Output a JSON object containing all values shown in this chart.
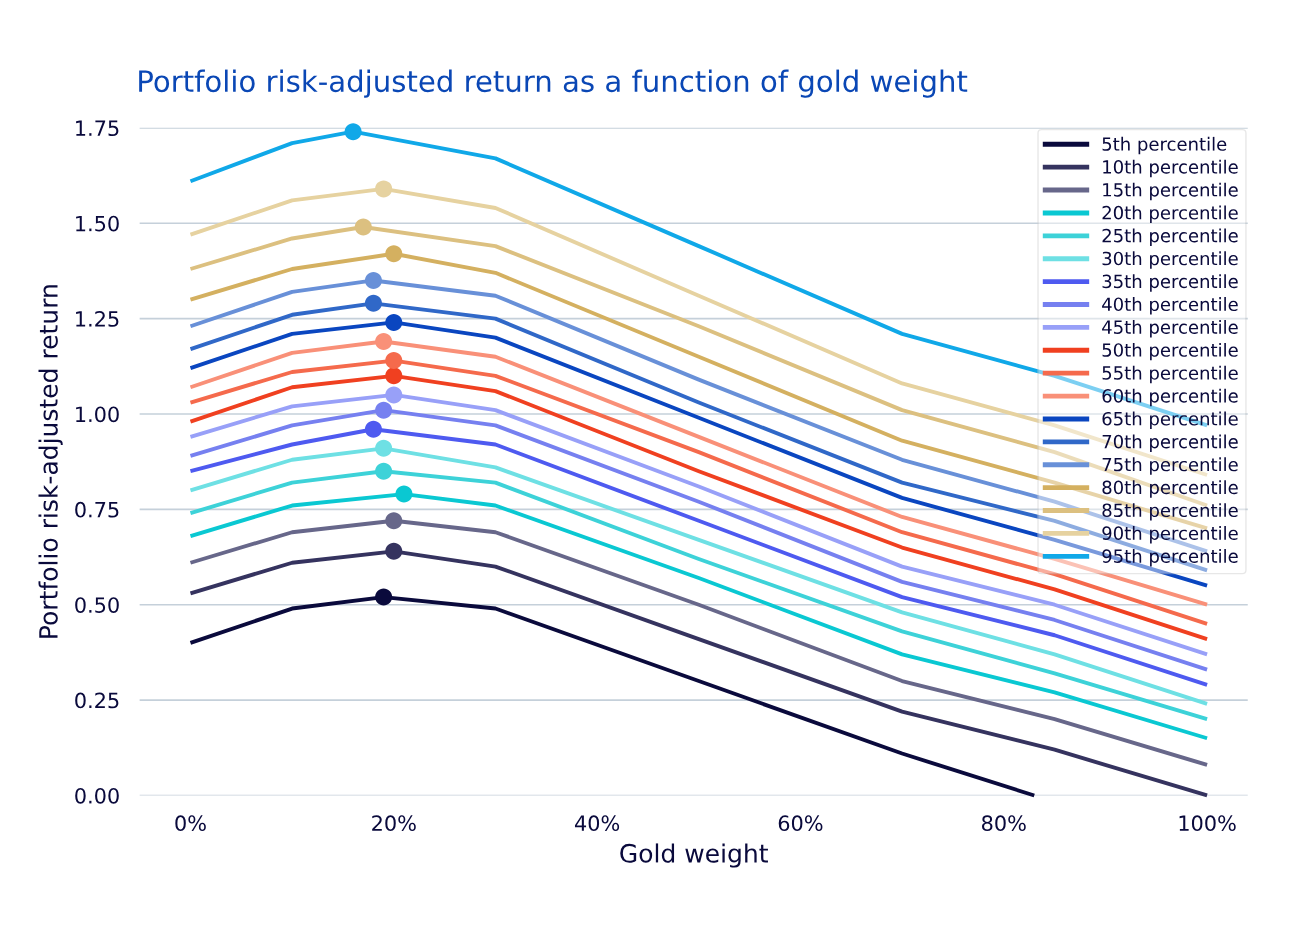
{
  "chart_data": {
    "type": "line",
    "title": "Portfolio risk-adjusted return as a function of gold weight",
    "xlabel": "Gold weight",
    "ylabel": "Portfolio risk-adjusted return",
    "xlim": [
      -5,
      104
    ],
    "xticks": [
      {
        "value": 0,
        "label": "0%"
      },
      {
        "value": 20,
        "label": "20%"
      },
      {
        "value": 40,
        "label": "40%"
      },
      {
        "value": 60,
        "label": "60%"
      },
      {
        "value": 80,
        "label": "80%"
      },
      {
        "value": 100,
        "label": "100%"
      }
    ],
    "ylim": [
      0,
      1.75
    ],
    "yticks": [
      {
        "value": 0,
        "label": "0.00"
      },
      {
        "value": 0.25,
        "label": "0.25"
      },
      {
        "value": 0.5,
        "label": "0.50"
      },
      {
        "value": 0.75,
        "label": "0.75"
      },
      {
        "value": 1.0,
        "label": "1.00"
      },
      {
        "value": 1.25,
        "label": "1.25"
      },
      {
        "value": 1.5,
        "label": "1.50"
      },
      {
        "value": 1.75,
        "label": "1.75"
      }
    ],
    "grid": "y",
    "legend": "top right",
    "marker": "none",
    "line_style": "solid",
    "series": [
      {
        "name": "5th percentile",
        "color": "#0a0a3c",
        "x": [
          0,
          10,
          19,
          30,
          50,
          70,
          83
        ],
        "values": [
          0.4,
          0.49,
          0.52,
          0.49,
          0.3,
          0.11,
          0.0
        ]
      },
      {
        "name": "10th percentile",
        "color": "#35335f",
        "x": [
          0,
          10,
          20,
          30,
          50,
          70,
          85,
          100
        ],
        "values": [
          0.53,
          0.61,
          0.64,
          0.6,
          0.41,
          0.22,
          0.12,
          0.0
        ]
      },
      {
        "name": "15th percentile",
        "color": "#67678a",
        "x": [
          0,
          10,
          20,
          30,
          50,
          70,
          85,
          100
        ],
        "values": [
          0.61,
          0.69,
          0.72,
          0.69,
          0.5,
          0.3,
          0.2,
          0.08
        ]
      },
      {
        "name": "20th percentile",
        "color": "#0ac8d2",
        "x": [
          0,
          10,
          21,
          30,
          50,
          70,
          85,
          100
        ],
        "values": [
          0.68,
          0.76,
          0.79,
          0.76,
          0.57,
          0.37,
          0.27,
          0.15
        ]
      },
      {
        "name": "25th percentile",
        "color": "#3dd2d8",
        "x": [
          0,
          10,
          19,
          30,
          50,
          70,
          85,
          100
        ],
        "values": [
          0.74,
          0.82,
          0.85,
          0.82,
          0.62,
          0.43,
          0.32,
          0.2
        ]
      },
      {
        "name": "30th percentile",
        "color": "#6ee0e4",
        "x": [
          0,
          10,
          19,
          30,
          50,
          70,
          85,
          100
        ],
        "values": [
          0.8,
          0.88,
          0.91,
          0.86,
          0.67,
          0.48,
          0.37,
          0.24
        ]
      },
      {
        "name": "35th percentile",
        "color": "#4e5af0",
        "x": [
          0,
          10,
          18,
          30,
          50,
          70,
          85,
          100
        ],
        "values": [
          0.85,
          0.92,
          0.96,
          0.92,
          0.72,
          0.52,
          0.42,
          0.29
        ]
      },
      {
        "name": "40th percentile",
        "color": "#7680f0",
        "x": [
          0,
          10,
          19,
          30,
          50,
          70,
          85,
          100
        ],
        "values": [
          0.89,
          0.97,
          1.01,
          0.97,
          0.77,
          0.56,
          0.46,
          0.33
        ]
      },
      {
        "name": "45th percentile",
        "color": "#98a0f8",
        "x": [
          0,
          10,
          20,
          30,
          50,
          70,
          85,
          100
        ],
        "values": [
          0.94,
          1.02,
          1.05,
          1.01,
          0.81,
          0.6,
          0.5,
          0.37
        ]
      },
      {
        "name": "50th percentile",
        "color": "#f04020",
        "x": [
          0,
          10,
          20,
          30,
          50,
          70,
          85,
          100
        ],
        "values": [
          0.98,
          1.07,
          1.1,
          1.06,
          0.85,
          0.65,
          0.54,
          0.41
        ]
      },
      {
        "name": "55th percentile",
        "color": "#f56a4c",
        "x": [
          0,
          10,
          20,
          30,
          50,
          70,
          85,
          100
        ],
        "values": [
          1.03,
          1.11,
          1.14,
          1.1,
          0.9,
          0.69,
          0.58,
          0.45
        ]
      },
      {
        "name": "60th percentile",
        "color": "#f99078",
        "x": [
          0,
          10,
          19,
          30,
          50,
          70,
          85,
          100
        ],
        "values": [
          1.07,
          1.16,
          1.19,
          1.15,
          0.94,
          0.73,
          0.62,
          0.5
        ]
      },
      {
        "name": "65th percentile",
        "color": "#0a46c0",
        "x": [
          0,
          10,
          20,
          30,
          50,
          70,
          85,
          100
        ],
        "values": [
          1.12,
          1.21,
          1.24,
          1.2,
          0.99,
          0.78,
          0.67,
          0.55
        ]
      },
      {
        "name": "70th percentile",
        "color": "#3068c8",
        "x": [
          0,
          10,
          18,
          30,
          50,
          70,
          85,
          100
        ],
        "values": [
          1.17,
          1.26,
          1.29,
          1.25,
          1.03,
          0.82,
          0.72,
          0.59
        ]
      },
      {
        "name": "75th percentile",
        "color": "#6890d8",
        "x": [
          0,
          10,
          18,
          30,
          50,
          70,
          85,
          100
        ],
        "values": [
          1.23,
          1.32,
          1.35,
          1.31,
          1.09,
          0.88,
          0.77,
          0.64
        ]
      },
      {
        "name": "80th percentile",
        "color": "#d4b060",
        "x": [
          0,
          10,
          20,
          30,
          50,
          70,
          85,
          100
        ],
        "values": [
          1.3,
          1.38,
          1.42,
          1.37,
          1.15,
          0.93,
          0.82,
          0.7
        ]
      },
      {
        "name": "85th percentile",
        "color": "#dcc080",
        "x": [
          0,
          10,
          17,
          30,
          50,
          70,
          85,
          100
        ],
        "values": [
          1.38,
          1.46,
          1.49,
          1.44,
          1.23,
          1.01,
          0.9,
          0.76
        ]
      },
      {
        "name": "90th percentile",
        "color": "#e6d2a0",
        "x": [
          0,
          10,
          19,
          30,
          50,
          70,
          85,
          100
        ],
        "values": [
          1.47,
          1.56,
          1.59,
          1.54,
          1.31,
          1.08,
          0.97,
          0.84
        ]
      },
      {
        "name": "95th percentile",
        "color": "#10a8e8",
        "x": [
          0,
          10,
          16,
          30,
          50,
          70,
          85,
          100
        ],
        "values": [
          1.61,
          1.71,
          1.74,
          1.67,
          1.44,
          1.21,
          1.1,
          0.97
        ]
      },
      {
        "type": "scatter",
        "marker": "circle",
        "x": [
          19,
          20,
          20,
          21,
          19,
          19,
          18,
          19,
          20,
          20,
          20,
          19,
          20,
          18,
          18,
          20,
          17,
          19,
          16
        ],
        "values": [
          0.52,
          0.64,
          0.72,
          0.79,
          0.85,
          0.91,
          0.96,
          1.01,
          1.05,
          1.1,
          1.14,
          1.19,
          1.24,
          1.29,
          1.35,
          1.42,
          1.49,
          1.59,
          1.74
        ],
        "colors": [
          "#0a0a3c",
          "#35335f",
          "#67678a",
          "#0ac8d2",
          "#3dd2d8",
          "#6ee0e4",
          "#4e5af0",
          "#7680f0",
          "#98a0f8",
          "#f04020",
          "#f56a4c",
          "#f99078",
          "#0a46c0",
          "#3068c8",
          "#6890d8",
          "#d4b060",
          "#dcc080",
          "#e6d2a0",
          "#10a8e8"
        ]
      }
    ]
  }
}
